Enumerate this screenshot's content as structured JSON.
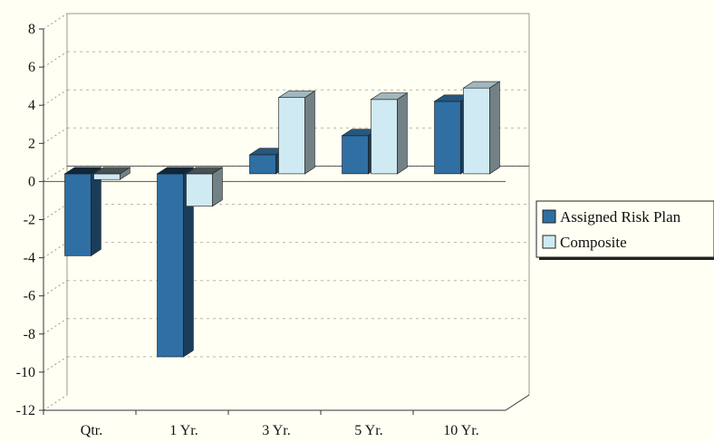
{
  "chart_data": {
    "type": "bar",
    "style": "3d-clustered-column",
    "categories": [
      "Qtr.",
      "1 Yr.",
      "3 Yr.",
      "5 Yr.",
      "10 Yr."
    ],
    "series": [
      {
        "name": "Assigned Risk Plan",
        "values": [
          -4.3,
          -9.6,
          1.0,
          2.0,
          3.8
        ],
        "color": "#2f6fa3"
      },
      {
        "name": "Composite",
        "values": [
          -0.3,
          -1.7,
          4.0,
          3.9,
          4.5
        ],
        "color": "#cfeaf3"
      }
    ],
    "ylim": [
      -12,
      8
    ],
    "yticks": [
      "8",
      "6",
      "4",
      "2",
      "0",
      "-2",
      "-4",
      "-6",
      "-8",
      "-10",
      "-12"
    ],
    "grid": true,
    "legend": "right",
    "title": "",
    "xlabel": "",
    "ylabel": ""
  }
}
